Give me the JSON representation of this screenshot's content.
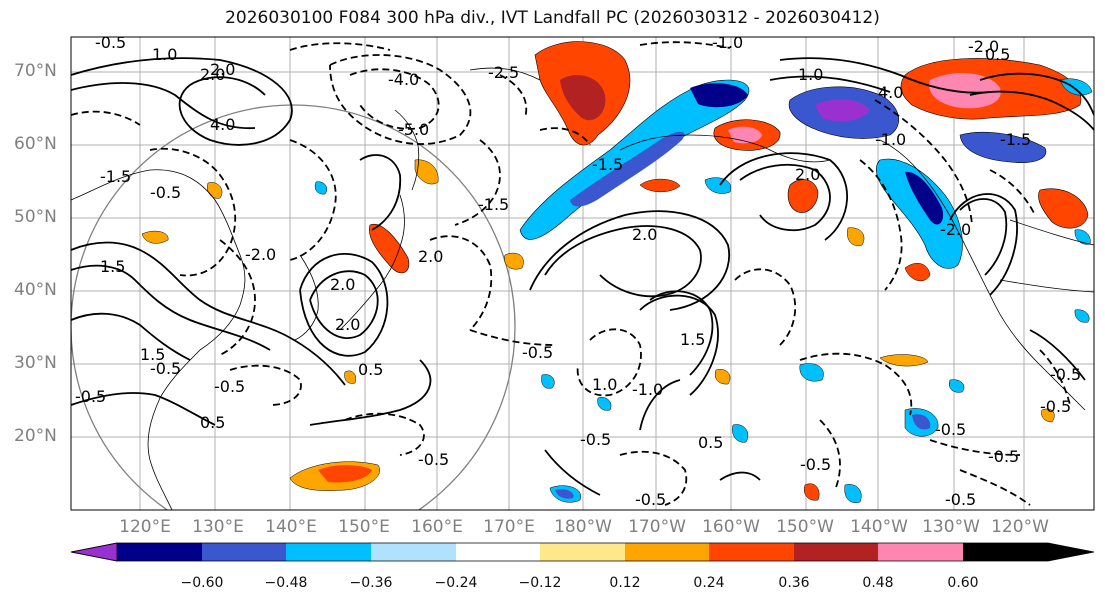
{
  "title": "2026030100 F084 300 hPa div., IVT Landfall PC (2026030312 - 2026030412)",
  "lat_labels": [
    "70°N",
    "60°N",
    "50°N",
    "40°N",
    "30°N",
    "20°N"
  ],
  "lon_labels": [
    "120°E",
    "130°E",
    "140°E",
    "150°E",
    "160°E",
    "170°E",
    "180°W",
    "170°W",
    "160°W",
    "150°W",
    "140°W",
    "130°W",
    "120°W"
  ],
  "colorbar": {
    "ticks": [
      "−0.60",
      "−0.48",
      "−0.36",
      "−0.24",
      "−0.12",
      "0.12",
      "0.24",
      "0.36",
      "0.48",
      "0.60"
    ],
    "colors": [
      "#9b30d0",
      "#00008b",
      "#3a57d0",
      "#00bfff",
      "#b0e2ff",
      "#ffffff",
      "#ffe88a",
      "#ffa500",
      "#ff4500",
      "#b22222",
      "#ff86b0"
    ]
  },
  "contour_labels": {
    "positive": [
      "1.0",
      "2.0",
      "4.0",
      "2.0",
      "1.5",
      "2.0",
      "1.5",
      "2.0",
      "0.5",
      "2.0",
      "0.5",
      "1.5",
      "1.0",
      "4.0",
      "2.0",
      "1.0",
      "0.5",
      "2.0",
      "0.5"
    ],
    "negative": [
      "-0.5",
      "-1.0",
      "-4.0",
      "-2.5",
      "-5.0",
      "-1.5",
      "-2.0",
      "-0.5",
      "-1.5",
      "-0.5",
      "-1.5",
      "-0.5",
      "-0.5",
      "-0.5",
      "-1.0",
      "-0.5",
      "-0.5",
      "-0.5",
      "-0.5",
      "-0.5",
      "-0.5",
      "-0.5",
      "-1.5",
      "-2.0",
      "-1.0",
      "-0.5",
      "-0.5",
      "-2.0"
    ]
  }
}
